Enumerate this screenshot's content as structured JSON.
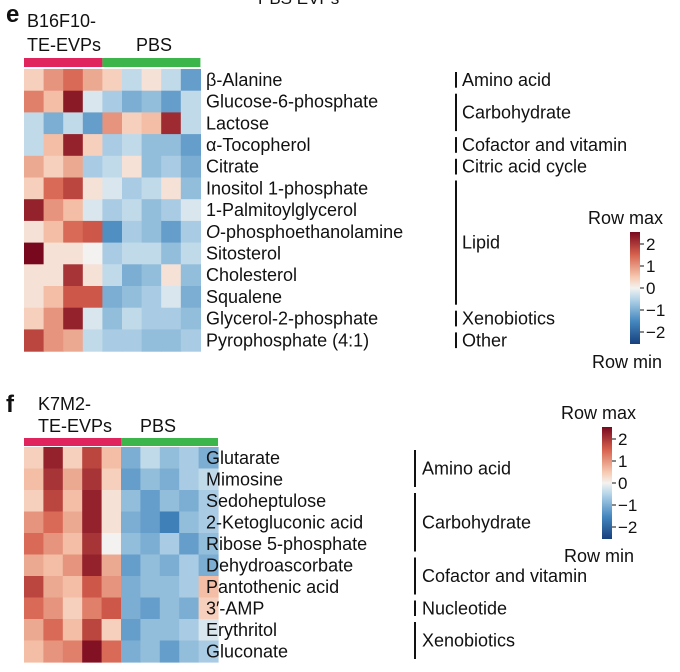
{
  "top_fragment": "PBS EVPs",
  "chart_data": [
    {
      "type": "heatmap",
      "panel": "e",
      "group_labels": [
        {
          "text_lines": [
            "B16F10-",
            "TE-EVPs"
          ],
          "color": "#e0245e"
        },
        {
          "text_lines": [
            "PBS"
          ],
          "color": "#3cb54a"
        }
      ],
      "group_sizes": [
        4,
        5
      ],
      "rows": [
        "β-Alanine",
        "Glucose-6-phosphate",
        "Lactose",
        "α-Tocopherol",
        "Citrate",
        "Inositol 1-phosphate",
        "1-Palmitoylglycerol",
        "O-phosphoethanolamine",
        "Sitosterol",
        "Cholesterol",
        "Squalene",
        "Glycerol-2-phosphate",
        "Pyrophosphate (4:1)"
      ],
      "categories": [
        {
          "label": "Amino acid",
          "rows": [
            0,
            0
          ]
        },
        {
          "label": "Carbohydrate",
          "rows": [
            1,
            2
          ]
        },
        {
          "label": "Cofactor and vitamin",
          "rows": [
            3,
            3
          ]
        },
        {
          "label": "Citric acid cycle",
          "rows": [
            4,
            4
          ]
        },
        {
          "label": "Lipid",
          "rows": [
            5,
            10
          ]
        },
        {
          "label": "Xenobiotics",
          "rows": [
            11,
            11
          ]
        },
        {
          "label": "Other",
          "rows": [
            12,
            12
          ]
        }
      ],
      "values": [
        [
          0.4,
          1.0,
          1.4,
          0.8,
          0.4,
          -0.4,
          0.2,
          -0.4,
          -1.2
        ],
        [
          1.2,
          0.6,
          2.3,
          -0.2,
          -0.6,
          -1.0,
          -0.8,
          -1.2,
          -0.4
        ],
        [
          -0.4,
          -1.0,
          -0.4,
          -1.2,
          1.0,
          0.4,
          0.6,
          2.1,
          -0.4
        ],
        [
          -0.4,
          0.6,
          2.2,
          0.4,
          -0.6,
          -0.4,
          -0.8,
          -0.8,
          -1.2
        ],
        [
          0.8,
          0.4,
          0.8,
          -0.6,
          -0.4,
          0.2,
          -0.8,
          -0.6,
          -1.0
        ],
        [
          0.4,
          1.4,
          1.8,
          0.2,
          -0.2,
          -0.6,
          -0.4,
          0.2,
          -0.8
        ],
        [
          2.2,
          1.0,
          0.6,
          -0.2,
          -0.6,
          -0.4,
          -0.8,
          -0.6,
          -0.2
        ],
        [
          0.2,
          0.6,
          1.4,
          1.6,
          -1.4,
          -0.6,
          -0.8,
          -1.2,
          -0.6
        ],
        [
          2.6,
          0.2,
          0.2,
          0.0,
          -0.6,
          -0.4,
          -0.4,
          -0.8,
          -0.4
        ],
        [
          0.2,
          0.2,
          2.0,
          0.2,
          -0.4,
          -1.0,
          -0.8,
          0.2,
          -0.8
        ],
        [
          0.2,
          0.6,
          1.6,
          1.6,
          -1.0,
          -0.8,
          -0.6,
          -0.2,
          -1.0
        ],
        [
          0.4,
          1.0,
          2.2,
          -0.2,
          -0.8,
          -0.4,
          -0.6,
          -0.6,
          -0.8
        ],
        [
          1.8,
          1.0,
          0.8,
          -0.4,
          -0.6,
          -0.6,
          -0.8,
          -0.8,
          -0.6
        ]
      ],
      "colorbar": {
        "title": "Row max",
        "bottom_label": "Row min",
        "ticks": [
          "2",
          "1",
          "0",
          "−1",
          "−2"
        ],
        "range": [
          -2.5,
          2.5
        ]
      }
    },
    {
      "type": "heatmap",
      "panel": "f",
      "group_labels": [
        {
          "text_lines": [
            "K7M2-",
            "TE-EVPs"
          ],
          "color": "#e0245e"
        },
        {
          "text_lines": [
            "PBS"
          ],
          "color": "#3cb54a"
        }
      ],
      "group_sizes": [
        5,
        5
      ],
      "rows": [
        "Glutarate",
        "Mimosine",
        "Sedoheptulose",
        "2-Ketogluconic acid",
        "Ribose 5-phosphate",
        "Dehydroascorbate",
        "Pantothenic acid",
        "3′-AMP",
        "Erythritol",
        "Gluconate"
      ],
      "categories": [
        {
          "label": "Amino acid",
          "rows": [
            0,
            1
          ]
        },
        {
          "label": "Carbohydrate",
          "rows": [
            2,
            4
          ]
        },
        {
          "label": "Cofactor and vitamin",
          "rows": [
            5,
            6
          ]
        },
        {
          "label": "Nucleotide",
          "rows": [
            7,
            7
          ]
        },
        {
          "label": "Xenobiotics",
          "rows": [
            8,
            9
          ]
        }
      ],
      "values": [
        [
          0.4,
          2.2,
          0.4,
          1.8,
          0.6,
          -1.0,
          -0.4,
          -0.8,
          -0.6,
          -1.0
        ],
        [
          0.6,
          2.0,
          0.8,
          2.0,
          0.4,
          -1.2,
          -0.8,
          -1.0,
          -0.6,
          -0.4
        ],
        [
          0.4,
          1.8,
          0.6,
          2.2,
          0.2,
          -0.8,
          -1.2,
          -0.8,
          -1.0,
          -0.6
        ],
        [
          1.0,
          1.4,
          0.8,
          2.2,
          0.2,
          -1.0,
          -1.2,
          -1.6,
          -0.8,
          -0.6
        ],
        [
          1.4,
          1.0,
          0.6,
          2.0,
          0.0,
          -0.8,
          -1.0,
          -0.6,
          -1.2,
          -0.8
        ],
        [
          0.8,
          0.6,
          1.0,
          2.2,
          0.8,
          -1.2,
          -0.8,
          -1.0,
          -0.6,
          -1.0
        ],
        [
          1.8,
          0.8,
          0.6,
          1.6,
          1.0,
          -1.0,
          -0.8,
          -0.8,
          -0.6,
          0.6
        ],
        [
          1.4,
          1.0,
          0.4,
          1.2,
          1.6,
          -1.0,
          -1.2,
          -0.8,
          -1.0,
          0.4
        ],
        [
          0.8,
          1.4,
          0.6,
          1.8,
          0.4,
          -1.2,
          -0.8,
          -0.8,
          -0.6,
          -0.2
        ],
        [
          0.6,
          1.0,
          1.2,
          2.4,
          1.4,
          -1.0,
          -0.8,
          -1.2,
          -0.8,
          -0.6
        ]
      ],
      "colorbar": {
        "title": "Row max",
        "bottom_label": "Row min",
        "ticks": [
          "2",
          "1",
          "0",
          "−1",
          "−2"
        ],
        "range": [
          -2.5,
          2.5
        ]
      }
    }
  ]
}
